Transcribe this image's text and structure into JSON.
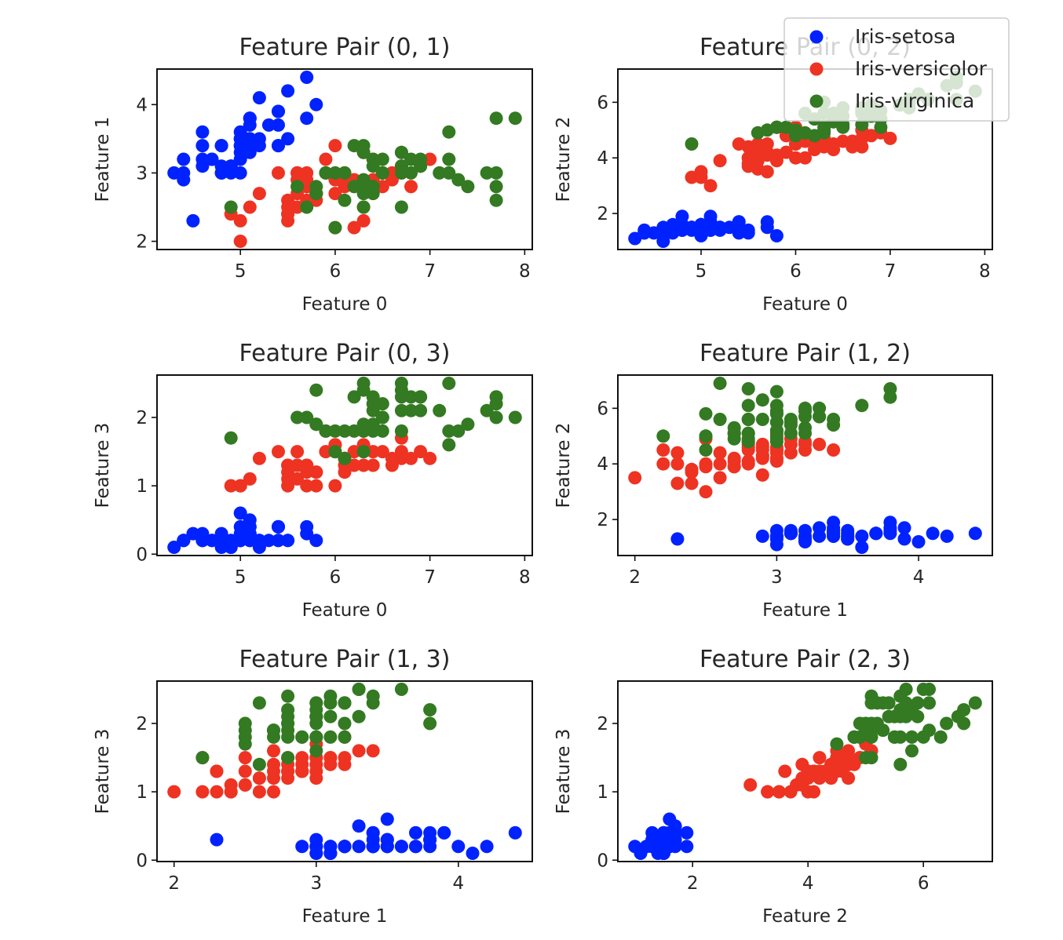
{
  "chart_data": {
    "type": "scatter",
    "layout": "3 rows x 2 columns grid of scatter subplots",
    "feature_labels": [
      "Feature 0",
      "Feature 1",
      "Feature 2",
      "Feature 3"
    ],
    "axis_ranges": {
      "0": [
        4.12,
        8.08
      ],
      "1": [
        1.88,
        4.52
      ],
      "2": [
        0.705,
        7.195
      ],
      "3": [
        -0.02,
        2.62
      ]
    },
    "axis_ticks": {
      "0": [
        5,
        6,
        7,
        8
      ],
      "1": [
        2,
        3,
        4
      ],
      "2": [
        2,
        4,
        6
      ],
      "3": [
        0,
        1,
        2
      ]
    },
    "panels": [
      {
        "title": "Feature Pair (0, 1)",
        "x_feature": 0,
        "y_feature": 1,
        "xlabel": "Feature 0",
        "ylabel": "Feature 1"
      },
      {
        "title": "Feature Pair (0, 2)",
        "x_feature": 0,
        "y_feature": 2,
        "xlabel": "Feature 0",
        "ylabel": "Feature 2"
      },
      {
        "title": "Feature Pair (0, 3)",
        "x_feature": 0,
        "y_feature": 3,
        "xlabel": "Feature 0",
        "ylabel": "Feature 3"
      },
      {
        "title": "Feature Pair (1, 2)",
        "x_feature": 1,
        "y_feature": 2,
        "xlabel": "Feature 1",
        "ylabel": "Feature 2"
      },
      {
        "title": "Feature Pair (1, 3)",
        "x_feature": 1,
        "y_feature": 3,
        "xlabel": "Feature 1",
        "ylabel": "Feature 3"
      },
      {
        "title": "Feature Pair (2, 3)",
        "x_feature": 2,
        "y_feature": 3,
        "xlabel": "Feature 2",
        "ylabel": "Feature 3"
      }
    ],
    "legend": {
      "placement": "top-right (overlapping panel Feature Pair (0, 2))",
      "entries": [
        "Iris-setosa",
        "Iris-versicolor",
        "Iris-virginica"
      ]
    },
    "grid": false,
    "series": [
      {
        "name": "Iris-setosa",
        "color": "#0022ff",
        "points": [
          [
            5.1,
            3.5,
            1.4,
            0.2
          ],
          [
            4.9,
            3.0,
            1.4,
            0.2
          ],
          [
            4.7,
            3.2,
            1.3,
            0.2
          ],
          [
            4.6,
            3.1,
            1.5,
            0.2
          ],
          [
            5.0,
            3.6,
            1.4,
            0.2
          ],
          [
            5.4,
            3.9,
            1.7,
            0.4
          ],
          [
            4.6,
            3.4,
            1.4,
            0.3
          ],
          [
            5.0,
            3.4,
            1.5,
            0.2
          ],
          [
            4.4,
            2.9,
            1.4,
            0.2
          ],
          [
            4.9,
            3.1,
            1.5,
            0.1
          ],
          [
            5.4,
            3.7,
            1.5,
            0.2
          ],
          [
            4.8,
            3.4,
            1.6,
            0.2
          ],
          [
            4.8,
            3.0,
            1.4,
            0.1
          ],
          [
            4.3,
            3.0,
            1.1,
            0.1
          ],
          [
            5.8,
            4.0,
            1.2,
            0.2
          ],
          [
            5.7,
            4.4,
            1.5,
            0.4
          ],
          [
            5.4,
            3.9,
            1.3,
            0.4
          ],
          [
            5.1,
            3.5,
            1.4,
            0.3
          ],
          [
            5.7,
            3.8,
            1.7,
            0.3
          ],
          [
            5.1,
            3.8,
            1.5,
            0.3
          ],
          [
            5.4,
            3.4,
            1.7,
            0.2
          ],
          [
            5.1,
            3.7,
            1.5,
            0.4
          ],
          [
            4.6,
            3.6,
            1.0,
            0.2
          ],
          [
            5.1,
            3.3,
            1.7,
            0.5
          ],
          [
            4.8,
            3.4,
            1.9,
            0.2
          ],
          [
            5.0,
            3.0,
            1.6,
            0.2
          ],
          [
            5.0,
            3.4,
            1.6,
            0.4
          ],
          [
            5.2,
            3.5,
            1.5,
            0.2
          ],
          [
            5.2,
            3.4,
            1.4,
            0.2
          ],
          [
            4.7,
            3.2,
            1.6,
            0.2
          ],
          [
            4.8,
            3.1,
            1.6,
            0.2
          ],
          [
            5.4,
            3.4,
            1.5,
            0.4
          ],
          [
            5.2,
            4.1,
            1.5,
            0.1
          ],
          [
            5.5,
            4.2,
            1.4,
            0.2
          ],
          [
            4.9,
            3.1,
            1.5,
            0.1
          ],
          [
            5.0,
            3.2,
            1.2,
            0.2
          ],
          [
            5.5,
            3.5,
            1.3,
            0.2
          ],
          [
            4.9,
            3.1,
            1.5,
            0.1
          ],
          [
            4.4,
            3.0,
            1.3,
            0.2
          ],
          [
            5.1,
            3.4,
            1.5,
            0.2
          ],
          [
            5.0,
            3.5,
            1.3,
            0.3
          ],
          [
            4.5,
            2.3,
            1.3,
            0.3
          ],
          [
            4.4,
            3.2,
            1.3,
            0.2
          ],
          [
            5.0,
            3.5,
            1.6,
            0.6
          ],
          [
            5.1,
            3.8,
            1.9,
            0.4
          ],
          [
            4.8,
            3.0,
            1.4,
            0.3
          ],
          [
            5.1,
            3.8,
            1.6,
            0.2
          ],
          [
            4.6,
            3.2,
            1.4,
            0.2
          ],
          [
            5.3,
            3.7,
            1.5,
            0.2
          ],
          [
            5.0,
            3.3,
            1.4,
            0.2
          ]
        ]
      },
      {
        "name": "Iris-versicolor",
        "color": "#ee3322",
        "points": [
          [
            7.0,
            3.2,
            4.7,
            1.4
          ],
          [
            6.4,
            3.2,
            4.5,
            1.5
          ],
          [
            6.9,
            3.1,
            4.9,
            1.5
          ],
          [
            5.5,
            2.3,
            4.0,
            1.3
          ],
          [
            6.5,
            2.8,
            4.6,
            1.5
          ],
          [
            5.7,
            2.8,
            4.5,
            1.3
          ],
          [
            6.3,
            3.3,
            4.7,
            1.6
          ],
          [
            4.9,
            2.4,
            3.3,
            1.0
          ],
          [
            6.6,
            2.9,
            4.6,
            1.3
          ],
          [
            5.2,
            2.7,
            3.9,
            1.4
          ],
          [
            5.0,
            2.0,
            3.5,
            1.0
          ],
          [
            5.9,
            3.0,
            4.2,
            1.5
          ],
          [
            6.0,
            2.2,
            4.0,
            1.0
          ],
          [
            6.1,
            2.9,
            4.7,
            1.4
          ],
          [
            5.6,
            2.9,
            3.6,
            1.3
          ],
          [
            6.7,
            3.1,
            4.4,
            1.4
          ],
          [
            5.6,
            3.0,
            4.5,
            1.5
          ],
          [
            5.8,
            2.7,
            4.1,
            1.0
          ],
          [
            6.2,
            2.2,
            4.5,
            1.5
          ],
          [
            5.6,
            2.5,
            3.9,
            1.1
          ],
          [
            5.9,
            3.2,
            4.8,
            1.8
          ],
          [
            6.1,
            2.8,
            4.0,
            1.3
          ],
          [
            6.3,
            2.5,
            4.9,
            1.5
          ],
          [
            6.1,
            2.8,
            4.7,
            1.2
          ],
          [
            6.4,
            2.9,
            4.3,
            1.3
          ],
          [
            6.6,
            3.0,
            4.4,
            1.4
          ],
          [
            6.8,
            2.8,
            4.8,
            1.4
          ],
          [
            6.7,
            3.0,
            5.0,
            1.7
          ],
          [
            6.0,
            2.9,
            4.5,
            1.5
          ],
          [
            5.7,
            2.6,
            3.5,
            1.0
          ],
          [
            5.5,
            2.4,
            3.8,
            1.1
          ],
          [
            5.5,
            2.4,
            3.7,
            1.0
          ],
          [
            5.8,
            2.7,
            3.9,
            1.2
          ],
          [
            6.0,
            2.7,
            5.1,
            1.6
          ],
          [
            5.4,
            3.0,
            4.5,
            1.5
          ],
          [
            6.0,
            3.4,
            4.5,
            1.6
          ],
          [
            6.7,
            3.1,
            4.7,
            1.5
          ],
          [
            6.3,
            2.3,
            4.4,
            1.3
          ],
          [
            5.6,
            3.0,
            4.1,
            1.3
          ],
          [
            5.5,
            2.5,
            4.0,
            1.3
          ],
          [
            5.5,
            2.6,
            4.4,
            1.2
          ],
          [
            6.1,
            3.0,
            4.6,
            1.4
          ],
          [
            5.8,
            2.6,
            4.0,
            1.2
          ],
          [
            5.0,
            2.3,
            3.3,
            1.0
          ],
          [
            5.6,
            2.7,
            4.2,
            1.3
          ],
          [
            5.7,
            3.0,
            4.2,
            1.2
          ],
          [
            5.7,
            2.9,
            4.2,
            1.3
          ],
          [
            6.2,
            2.9,
            4.3,
            1.3
          ],
          [
            5.1,
            2.5,
            3.0,
            1.1
          ],
          [
            5.7,
            2.8,
            4.1,
            1.3
          ]
        ]
      },
      {
        "name": "Iris-virginica",
        "color": "#337a22",
        "points": [
          [
            6.3,
            3.3,
            6.0,
            2.5
          ],
          [
            5.8,
            2.7,
            5.1,
            1.9
          ],
          [
            7.1,
            3.0,
            5.9,
            2.1
          ],
          [
            6.3,
            2.9,
            5.6,
            1.8
          ],
          [
            6.5,
            3.0,
            5.8,
            2.2
          ],
          [
            7.6,
            3.0,
            6.6,
            2.1
          ],
          [
            4.9,
            2.5,
            4.5,
            1.7
          ],
          [
            7.3,
            2.9,
            6.3,
            1.8
          ],
          [
            6.7,
            2.5,
            5.8,
            1.8
          ],
          [
            7.2,
            3.6,
            6.1,
            2.5
          ],
          [
            6.5,
            3.2,
            5.1,
            2.0
          ],
          [
            6.4,
            2.7,
            5.3,
            1.9
          ],
          [
            6.8,
            3.0,
            5.5,
            2.1
          ],
          [
            5.7,
            2.5,
            5.0,
            2.0
          ],
          [
            5.8,
            2.8,
            5.1,
            2.4
          ],
          [
            6.4,
            3.2,
            5.3,
            2.3
          ],
          [
            6.5,
            3.0,
            5.5,
            1.8
          ],
          [
            7.7,
            3.8,
            6.7,
            2.2
          ],
          [
            7.7,
            2.6,
            6.9,
            2.3
          ],
          [
            6.0,
            2.2,
            5.0,
            1.5
          ],
          [
            6.9,
            3.2,
            5.7,
            2.3
          ],
          [
            5.6,
            2.8,
            4.9,
            2.0
          ],
          [
            7.7,
            2.8,
            6.7,
            2.0
          ],
          [
            6.3,
            2.7,
            4.9,
            1.8
          ],
          [
            6.7,
            3.3,
            5.7,
            2.1
          ],
          [
            7.2,
            3.2,
            6.0,
            1.8
          ],
          [
            6.2,
            2.8,
            4.8,
            1.8
          ],
          [
            6.1,
            3.0,
            4.9,
            1.8
          ],
          [
            6.4,
            2.8,
            5.6,
            2.1
          ],
          [
            7.2,
            3.0,
            5.8,
            1.6
          ],
          [
            7.4,
            2.8,
            6.1,
            1.9
          ],
          [
            7.9,
            3.8,
            6.4,
            2.0
          ],
          [
            6.4,
            2.8,
            5.6,
            2.2
          ],
          [
            6.3,
            2.8,
            5.1,
            1.5
          ],
          [
            6.1,
            2.6,
            5.6,
            1.4
          ],
          [
            7.7,
            3.0,
            6.1,
            2.3
          ],
          [
            6.3,
            3.4,
            5.6,
            2.4
          ],
          [
            6.4,
            3.1,
            5.5,
            1.8
          ],
          [
            6.0,
            3.0,
            4.8,
            1.8
          ],
          [
            6.9,
            3.1,
            5.4,
            2.1
          ],
          [
            6.7,
            3.1,
            5.6,
            2.4
          ],
          [
            6.9,
            3.1,
            5.1,
            2.3
          ],
          [
            5.8,
            2.7,
            5.1,
            1.9
          ],
          [
            6.8,
            3.2,
            5.9,
            2.3
          ],
          [
            6.7,
            3.3,
            5.7,
            2.5
          ],
          [
            6.7,
            3.0,
            5.2,
            2.3
          ],
          [
            6.3,
            2.5,
            5.0,
            1.9
          ],
          [
            6.5,
            3.0,
            5.2,
            2.0
          ],
          [
            6.2,
            3.4,
            5.4,
            2.3
          ],
          [
            5.9,
            3.0,
            5.1,
            1.8
          ]
        ]
      }
    ]
  }
}
